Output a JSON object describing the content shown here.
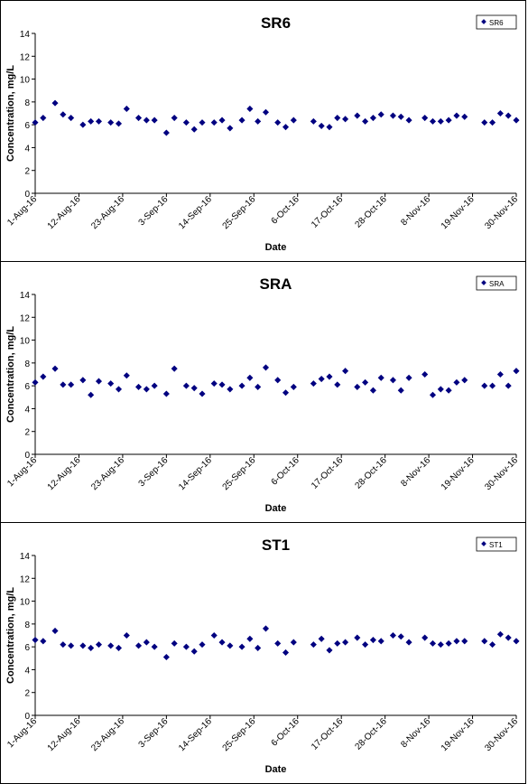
{
  "chart_data": [
    {
      "type": "scatter",
      "title": "SR6",
      "xlabel": "Date",
      "ylabel": "Concentration, mg/L",
      "ylim": [
        0,
        14
      ],
      "yticks": [
        0,
        2,
        4,
        6,
        8,
        10,
        12,
        14
      ],
      "xlim": [
        "2016-08-01",
        "2016-11-30"
      ],
      "xticks": [
        "1-Aug-16",
        "12-Aug-16",
        "23-Aug-16",
        "3-Sep-16",
        "14-Sep-16",
        "25-Sep-16",
        "6-Oct-16",
        "17-Oct-16",
        "28-Oct-16",
        "8-Nov-16",
        "19-Nov-16",
        "30-Nov-16"
      ],
      "legend_position": "top-right",
      "marker_color": "#000080",
      "series": [
        {
          "name": "SR6",
          "points": [
            [
              "2016-08-01",
              6.2
            ],
            [
              "2016-08-03",
              6.6
            ],
            [
              "2016-08-06",
              7.9
            ],
            [
              "2016-08-08",
              6.9
            ],
            [
              "2016-08-10",
              6.6
            ],
            [
              "2016-08-13",
              6.0
            ],
            [
              "2016-08-15",
              6.3
            ],
            [
              "2016-08-17",
              6.3
            ],
            [
              "2016-08-20",
              6.2
            ],
            [
              "2016-08-22",
              6.1
            ],
            [
              "2016-08-24",
              7.4
            ],
            [
              "2016-08-27",
              6.6
            ],
            [
              "2016-08-29",
              6.4
            ],
            [
              "2016-08-31",
              6.4
            ],
            [
              "2016-09-03",
              5.3
            ],
            [
              "2016-09-05",
              6.6
            ],
            [
              "2016-09-08",
              6.2
            ],
            [
              "2016-09-10",
              5.6
            ],
            [
              "2016-09-12",
              6.2
            ],
            [
              "2016-09-15",
              6.2
            ],
            [
              "2016-09-17",
              6.4
            ],
            [
              "2016-09-19",
              5.7
            ],
            [
              "2016-09-22",
              6.4
            ],
            [
              "2016-09-24",
              7.4
            ],
            [
              "2016-09-26",
              6.3
            ],
            [
              "2016-09-28",
              7.1
            ],
            [
              "2016-10-01",
              6.2
            ],
            [
              "2016-10-03",
              5.8
            ],
            [
              "2016-10-05",
              6.4
            ],
            [
              "2016-10-10",
              6.3
            ],
            [
              "2016-10-12",
              5.9
            ],
            [
              "2016-10-14",
              5.8
            ],
            [
              "2016-10-16",
              6.6
            ],
            [
              "2016-10-18",
              6.5
            ],
            [
              "2016-10-21",
              6.8
            ],
            [
              "2016-10-23",
              6.3
            ],
            [
              "2016-10-25",
              6.6
            ],
            [
              "2016-10-27",
              6.9
            ],
            [
              "2016-10-30",
              6.8
            ],
            [
              "2016-11-01",
              6.7
            ],
            [
              "2016-11-03",
              6.4
            ],
            [
              "2016-11-07",
              6.6
            ],
            [
              "2016-11-09",
              6.3
            ],
            [
              "2016-11-11",
              6.3
            ],
            [
              "2016-11-13",
              6.4
            ],
            [
              "2016-11-15",
              6.8
            ],
            [
              "2016-11-17",
              6.7
            ],
            [
              "2016-11-22",
              6.2
            ],
            [
              "2016-11-24",
              6.2
            ],
            [
              "2016-11-26",
              7.0
            ],
            [
              "2016-11-28",
              6.8
            ],
            [
              "2016-11-30",
              6.4
            ]
          ]
        }
      ]
    },
    {
      "type": "scatter",
      "title": "SRA",
      "xlabel": "Date",
      "ylabel": "Concentration, mg/L",
      "ylim": [
        0,
        14
      ],
      "yticks": [
        0,
        2,
        4,
        6,
        8,
        10,
        12,
        14
      ],
      "xlim": [
        "2016-08-01",
        "2016-11-30"
      ],
      "xticks": [
        "1-Aug-16",
        "12-Aug-16",
        "23-Aug-16",
        "3-Sep-16",
        "14-Sep-16",
        "25-Sep-16",
        "6-Oct-16",
        "17-Oct-16",
        "28-Oct-16",
        "8-Nov-16",
        "19-Nov-16",
        "30-Nov-16"
      ],
      "legend_position": "top-right",
      "marker_color": "#000080",
      "series": [
        {
          "name": "SRA",
          "points": [
            [
              "2016-08-01",
              6.3
            ],
            [
              "2016-08-03",
              6.8
            ],
            [
              "2016-08-06",
              7.5
            ],
            [
              "2016-08-08",
              6.1
            ],
            [
              "2016-08-10",
              6.1
            ],
            [
              "2016-08-13",
              6.5
            ],
            [
              "2016-08-15",
              5.2
            ],
            [
              "2016-08-17",
              6.4
            ],
            [
              "2016-08-20",
              6.2
            ],
            [
              "2016-08-22",
              5.7
            ],
            [
              "2016-08-24",
              6.9
            ],
            [
              "2016-08-27",
              5.9
            ],
            [
              "2016-08-29",
              5.7
            ],
            [
              "2016-08-31",
              6.0
            ],
            [
              "2016-09-03",
              5.3
            ],
            [
              "2016-09-05",
              7.5
            ],
            [
              "2016-09-08",
              6.0
            ],
            [
              "2016-09-10",
              5.8
            ],
            [
              "2016-09-12",
              5.3
            ],
            [
              "2016-09-15",
              6.2
            ],
            [
              "2016-09-17",
              6.1
            ],
            [
              "2016-09-19",
              5.7
            ],
            [
              "2016-09-22",
              6.0
            ],
            [
              "2016-09-24",
              6.7
            ],
            [
              "2016-09-26",
              5.9
            ],
            [
              "2016-09-28",
              7.6
            ],
            [
              "2016-10-01",
              6.5
            ],
            [
              "2016-10-03",
              5.4
            ],
            [
              "2016-10-05",
              5.9
            ],
            [
              "2016-10-10",
              6.2
            ],
            [
              "2016-10-12",
              6.6
            ],
            [
              "2016-10-14",
              6.8
            ],
            [
              "2016-10-16",
              6.1
            ],
            [
              "2016-10-18",
              7.3
            ],
            [
              "2016-10-21",
              5.9
            ],
            [
              "2016-10-23",
              6.3
            ],
            [
              "2016-10-25",
              5.6
            ],
            [
              "2016-10-27",
              6.7
            ],
            [
              "2016-10-30",
              6.5
            ],
            [
              "2016-11-01",
              5.6
            ],
            [
              "2016-11-03",
              6.7
            ],
            [
              "2016-11-07",
              7.0
            ],
            [
              "2016-11-09",
              5.2
            ],
            [
              "2016-11-11",
              5.7
            ],
            [
              "2016-11-13",
              5.6
            ],
            [
              "2016-11-15",
              6.3
            ],
            [
              "2016-11-17",
              6.5
            ],
            [
              "2016-11-22",
              6.0
            ],
            [
              "2016-11-24",
              6.0
            ],
            [
              "2016-11-26",
              7.0
            ],
            [
              "2016-11-28",
              6.0
            ],
            [
              "2016-11-30",
              7.3
            ]
          ]
        }
      ]
    },
    {
      "type": "scatter",
      "title": "ST1",
      "xlabel": "Date",
      "ylabel": "Concentration, mg/L",
      "ylim": [
        0,
        14
      ],
      "yticks": [
        0,
        2,
        4,
        6,
        8,
        10,
        12,
        14
      ],
      "xlim": [
        "2016-08-01",
        "2016-11-30"
      ],
      "xticks": [
        "1-Aug-16",
        "12-Aug-16",
        "23-Aug-16",
        "3-Sep-16",
        "14-Sep-16",
        "25-Sep-16",
        "6-Oct-16",
        "17-Oct-16",
        "28-Oct-16",
        "8-Nov-16",
        "19-Nov-16",
        "30-Nov-16"
      ],
      "legend_position": "top-right",
      "marker_color": "#000080",
      "series": [
        {
          "name": "ST1",
          "points": [
            [
              "2016-08-01",
              6.6
            ],
            [
              "2016-08-03",
              6.5
            ],
            [
              "2016-08-06",
              7.4
            ],
            [
              "2016-08-08",
              6.2
            ],
            [
              "2016-08-10",
              6.1
            ],
            [
              "2016-08-13",
              6.1
            ],
            [
              "2016-08-15",
              5.9
            ],
            [
              "2016-08-17",
              6.2
            ],
            [
              "2016-08-20",
              6.1
            ],
            [
              "2016-08-22",
              5.9
            ],
            [
              "2016-08-24",
              7.0
            ],
            [
              "2016-08-27",
              6.1
            ],
            [
              "2016-08-29",
              6.4
            ],
            [
              "2016-08-31",
              6.0
            ],
            [
              "2016-09-03",
              5.1
            ],
            [
              "2016-09-05",
              6.3
            ],
            [
              "2016-09-08",
              6.0
            ],
            [
              "2016-09-10",
              5.6
            ],
            [
              "2016-09-12",
              6.2
            ],
            [
              "2016-09-15",
              7.0
            ],
            [
              "2016-09-17",
              6.4
            ],
            [
              "2016-09-19",
              6.1
            ],
            [
              "2016-09-22",
              6.0
            ],
            [
              "2016-09-24",
              6.7
            ],
            [
              "2016-09-26",
              5.9
            ],
            [
              "2016-09-28",
              7.6
            ],
            [
              "2016-10-01",
              6.3
            ],
            [
              "2016-10-03",
              5.5
            ],
            [
              "2016-10-05",
              6.4
            ],
            [
              "2016-10-10",
              6.2
            ],
            [
              "2016-10-12",
              6.7
            ],
            [
              "2016-10-14",
              5.7
            ],
            [
              "2016-10-16",
              6.3
            ],
            [
              "2016-10-18",
              6.4
            ],
            [
              "2016-10-21",
              6.8
            ],
            [
              "2016-10-23",
              6.2
            ],
            [
              "2016-10-25",
              6.6
            ],
            [
              "2016-10-27",
              6.5
            ],
            [
              "2016-10-30",
              7.0
            ],
            [
              "2016-11-01",
              6.9
            ],
            [
              "2016-11-03",
              6.4
            ],
            [
              "2016-11-07",
              6.8
            ],
            [
              "2016-11-09",
              6.3
            ],
            [
              "2016-11-11",
              6.2
            ],
            [
              "2016-11-13",
              6.3
            ],
            [
              "2016-11-15",
              6.5
            ],
            [
              "2016-11-17",
              6.5
            ],
            [
              "2016-11-22",
              6.5
            ],
            [
              "2016-11-24",
              6.2
            ],
            [
              "2016-11-26",
              7.1
            ],
            [
              "2016-11-28",
              6.8
            ],
            [
              "2016-11-30",
              6.5
            ]
          ]
        }
      ]
    }
  ]
}
